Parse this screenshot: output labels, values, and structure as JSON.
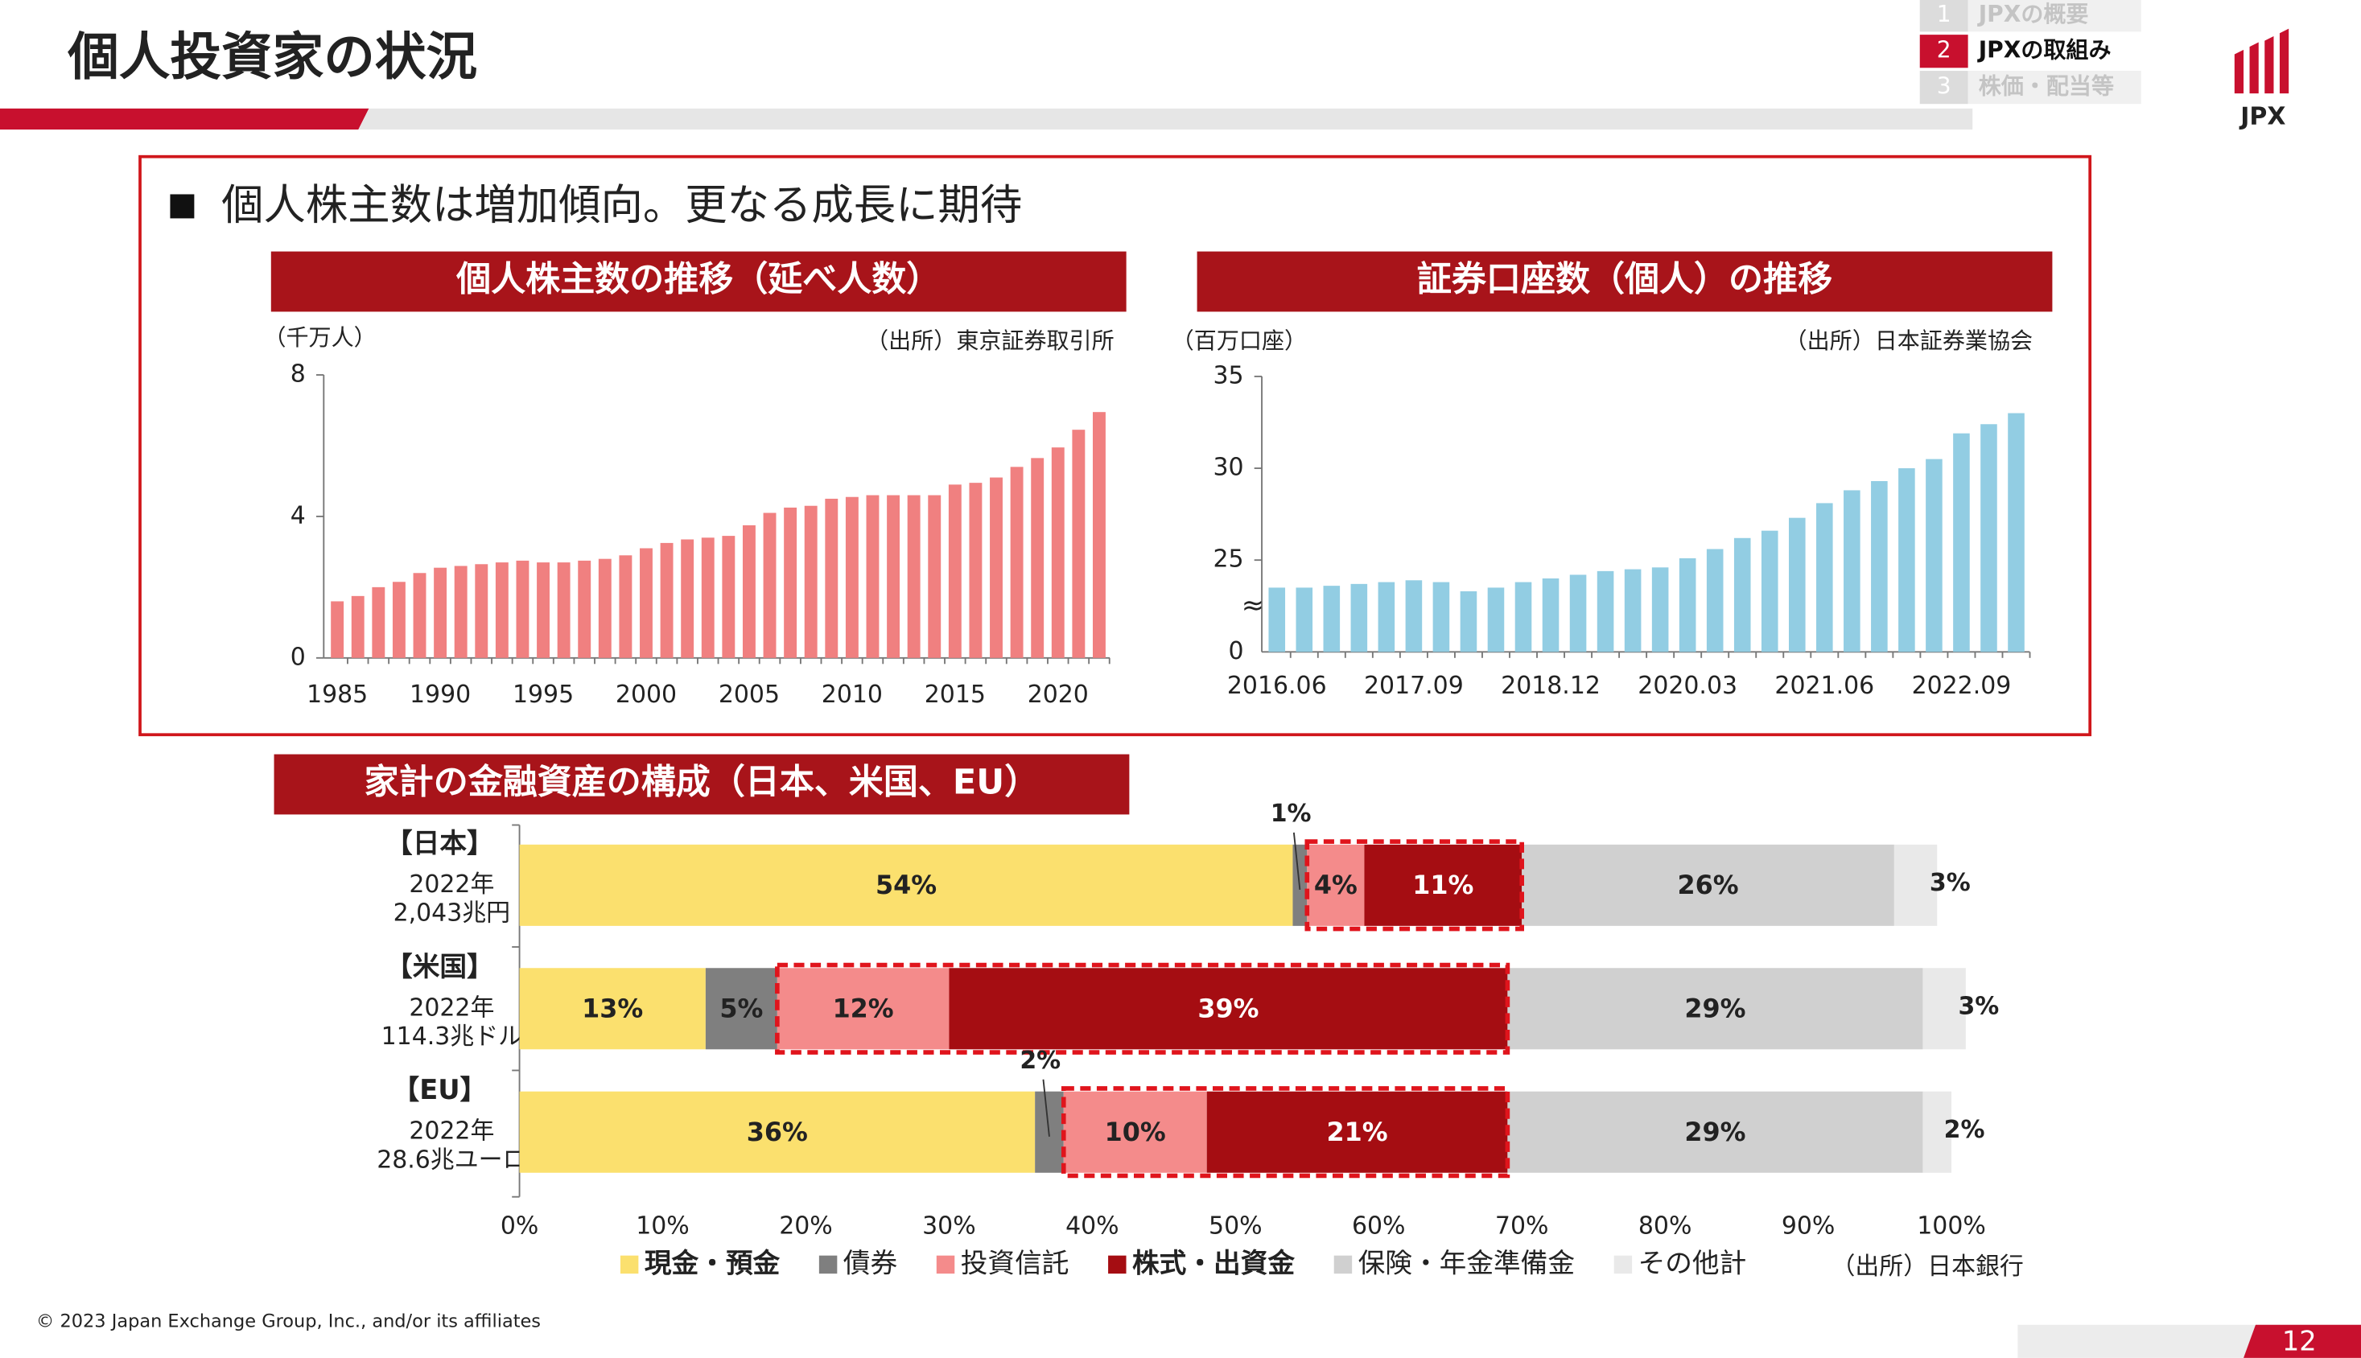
{
  "header": {
    "title": "個人投資家の状況",
    "logo": "JPX",
    "nav": [
      {
        "number": "1",
        "label": "JPXの概要"
      },
      {
        "number": "2",
        "label": "JPXの取組み"
      },
      {
        "number": "3",
        "label": "株価・配当等"
      }
    ]
  },
  "bullet": "個人株主数は増加傾向。更なる成長に期待",
  "chart_data": [
    {
      "type": "bar",
      "title": "個人株主数の推移（延べ人数）",
      "y_label": "（千万人）",
      "source": "（出所）東京証券取引所",
      "color": "#f08080",
      "categories": [
        "1985",
        null,
        null,
        null,
        null,
        "1990",
        null,
        null,
        null,
        null,
        "1995",
        null,
        null,
        null,
        null,
        "2000",
        null,
        null,
        null,
        null,
        "2005",
        null,
        null,
        null,
        null,
        "2010",
        null,
        null,
        null,
        null,
        "2015",
        null,
        null,
        null,
        null,
        "2020",
        null,
        null
      ],
      "values": [
        1.6,
        1.75,
        2.0,
        2.15,
        2.4,
        2.55,
        2.6,
        2.65,
        2.7,
        2.75,
        2.7,
        2.7,
        2.75,
        2.8,
        2.9,
        3.1,
        3.25,
        3.35,
        3.4,
        3.45,
        3.75,
        4.1,
        4.25,
        4.3,
        4.5,
        4.55,
        4.6,
        4.6,
        4.6,
        4.6,
        4.9,
        4.95,
        5.1,
        5.4,
        5.65,
        5.95,
        6.45,
        6.95
      ],
      "ylim": [
        0,
        8
      ],
      "yticks": [
        0,
        4,
        8
      ]
    },
    {
      "type": "bar",
      "title": "証券口座数（個人）の推移",
      "y_label": "（百万口座）",
      "source": "（出所）日本証券業協会",
      "color": "#92cde3",
      "categories": [
        "2016.06",
        null,
        null,
        null,
        null,
        "2017.09",
        null,
        null,
        null,
        null,
        "2018.12",
        null,
        null,
        null,
        null,
        "2020.03",
        null,
        null,
        null,
        null,
        "2021.06",
        null,
        null,
        null,
        null,
        "2022.09",
        null,
        null
      ],
      "values": [
        23.5,
        23.5,
        23.6,
        23.7,
        23.8,
        23.9,
        23.8,
        23.3,
        23.5,
        23.8,
        24.0,
        24.2,
        24.4,
        24.5,
        24.6,
        25.1,
        25.6,
        26.2,
        26.6,
        27.3,
        28.1,
        28.8,
        29.3,
        30.0,
        30.5,
        31.9,
        32.4,
        33.0
      ],
      "ylim": [
        20,
        35
      ],
      "yticks": [
        25,
        30,
        35
      ],
      "axis_break": {
        "label": "0",
        "symbol": "≈"
      }
    },
    {
      "type": "stacked_barh",
      "title": "家計の金融資産の構成（日本、米国、EU）",
      "source": "（出所）日本銀行",
      "categories": [
        "【日本】",
        "【米国】",
        "【EU】"
      ],
      "category_notes": [
        [
          "2022年",
          "2,043兆円"
        ],
        [
          "2022年",
          "114.3兆ドル"
        ],
        [
          "2022年",
          "28.6兆ユーロ"
        ]
      ],
      "series": [
        {
          "name": "現金・預金",
          "color": "#fbe06e",
          "values": [
            54,
            13,
            36
          ],
          "value_labels": [
            "54%",
            "13%",
            "36%"
          ]
        },
        {
          "name": "債券",
          "color": "#7f7f7f",
          "values": [
            1,
            5,
            2
          ],
          "value_labels": [
            "1%",
            "5%",
            "2%"
          ]
        },
        {
          "name": "投資信託",
          "color": "#f48b8b",
          "values": [
            4,
            12,
            10
          ],
          "value_labels": [
            "4%",
            "12%",
            "10%"
          ]
        },
        {
          "name": "株式・出資金",
          "color": "#a50d12",
          "values": [
            11,
            39,
            21
          ],
          "value_labels": [
            "11%",
            "39%",
            "21%"
          ]
        },
        {
          "name": "保険・年金準備金",
          "color": "#d0d0d0",
          "values": [
            26,
            29,
            29
          ],
          "value_labels": [
            "26%",
            "29%",
            "29%"
          ]
        },
        {
          "name": "その他計",
          "color": "#e9e9e9",
          "values": [
            3,
            3,
            2
          ],
          "value_labels": [
            "3%",
            "3%",
            "2%"
          ]
        }
      ],
      "xlim": [
        0,
        100
      ],
      "xticks": [
        {
          "value": 0,
          "label": "0%"
        },
        {
          "value": 10,
          "label": "10%"
        },
        {
          "value": 20,
          "label": "20%"
        },
        {
          "value": 30,
          "label": "30%"
        },
        {
          "value": 40,
          "label": "40%"
        },
        {
          "value": 50,
          "label": "50%"
        },
        {
          "value": 60,
          "label": "60%"
        },
        {
          "value": 70,
          "label": "70%"
        },
        {
          "value": 80,
          "label": "80%"
        },
        {
          "value": 90,
          "label": "90%"
        },
        {
          "value": 100,
          "label": "100%"
        }
      ]
    }
  ],
  "footer": {
    "copyright": "© 2023 Japan Exchange Group, Inc., and/or its affiliates",
    "page": "12"
  }
}
